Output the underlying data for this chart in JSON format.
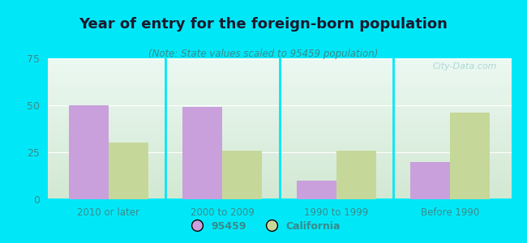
{
  "title": "Year of entry for the foreign-born population",
  "subtitle": "(Note: State values scaled to 95459 population)",
  "categories": [
    "2010 or later",
    "2000 to 2009",
    "1990 to 1999",
    "Before 1990"
  ],
  "values_95459": [
    50,
    49,
    10,
    20
  ],
  "values_california": [
    30,
    26,
    26,
    46
  ],
  "bar_color_95459": "#c9a0dc",
  "bar_color_california": "#c5d89a",
  "background_outer": "#00e8f8",
  "ylim": [
    0,
    75
  ],
  "yticks": [
    0,
    25,
    50,
    75
  ],
  "bar_width": 0.35,
  "legend_label_1": "95459",
  "legend_label_2": "California",
  "watermark": "City-Data.com",
  "title_color": "#1a1a2e",
  "subtitle_color": "#3a8a8a",
  "tick_color": "#3a8a8a",
  "separator_color": "#88bbbb"
}
